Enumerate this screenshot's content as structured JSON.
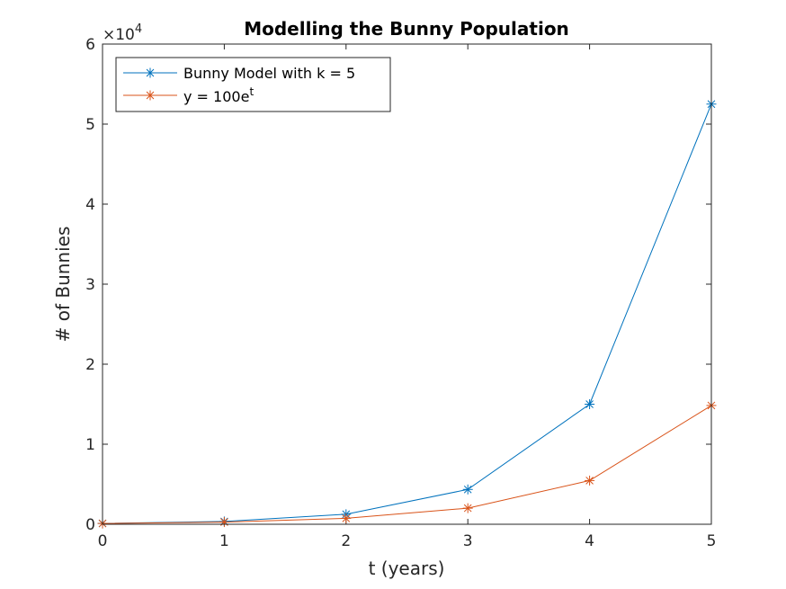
{
  "chart_data": {
    "type": "line",
    "title": "Modelling the Bunny Population",
    "xlabel": "t (years)",
    "ylabel": "# of Bunnies",
    "xlim": [
      0,
      5
    ],
    "ylim": [
      0,
      60000
    ],
    "xticks": [
      0,
      1,
      2,
      3,
      4,
      5
    ],
    "xtick_labels": [
      "0",
      "1",
      "2",
      "3",
      "4",
      "5"
    ],
    "yticks": [
      0,
      10000,
      20000,
      30000,
      40000,
      50000,
      60000
    ],
    "ytick_labels": [
      "0",
      "1",
      "2",
      "3",
      "4",
      "5",
      "6"
    ],
    "y_multiplier_base": "×10",
    "y_multiplier_exp": "4",
    "grid": false,
    "legend_position": "top-left",
    "x": [
      0,
      1,
      2,
      3,
      4,
      5
    ],
    "series": [
      {
        "name": "Bunny Model with k = 5",
        "values": [
          100,
          350,
          1250,
          4350,
          15000,
          52500
        ],
        "color": "#0072BD",
        "marker": "asterisk"
      },
      {
        "name_base": "y = 100e",
        "name_sup": "t",
        "values": [
          100,
          272,
          739,
          2009,
          5460,
          14841
        ],
        "color": "#D95319",
        "marker": "asterisk"
      }
    ]
  }
}
